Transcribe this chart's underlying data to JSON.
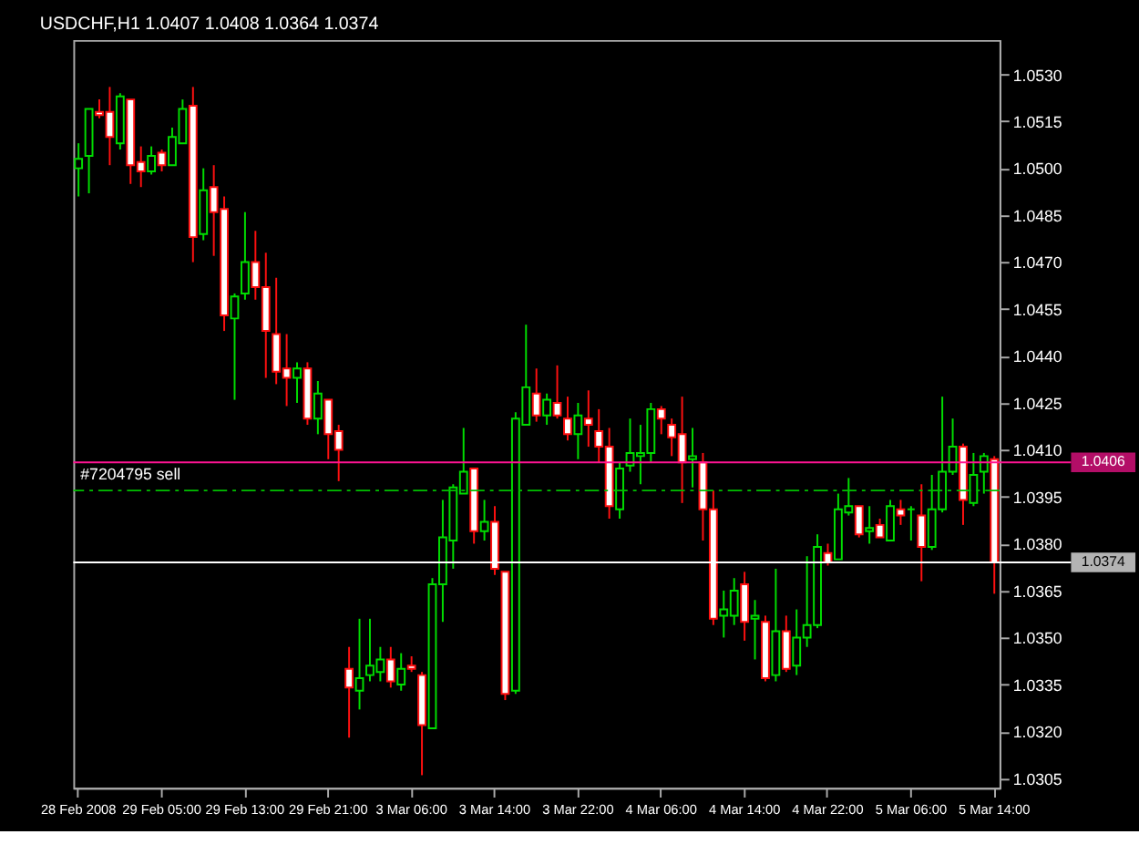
{
  "chart_data": {
    "type": "candlestick",
    "title": "USDCHF,H1  1.0407 1.0408 1.0364 1.0374",
    "categories": [
      "28 Feb 2008",
      null,
      null,
      null,
      null,
      null,
      null,
      null,
      "29 Feb 05:00",
      null,
      null,
      null,
      null,
      null,
      null,
      null,
      "29 Feb 13:00",
      null,
      null,
      null,
      null,
      null,
      null,
      null,
      "29 Feb 21:00",
      null,
      null,
      null,
      null,
      null,
      null,
      null,
      "3 Mar 06:00",
      null,
      null,
      null,
      null,
      null,
      null,
      null,
      "3 Mar 14:00",
      null,
      null,
      null,
      null,
      null,
      null,
      null,
      "3 Mar 22:00",
      null,
      null,
      null,
      null,
      null,
      null,
      null,
      "4 Mar 06:00",
      null,
      null,
      null,
      null,
      null,
      null,
      null,
      "4 Mar 14:00",
      null,
      null,
      null,
      null,
      null,
      null,
      null,
      "4 Mar 22:00",
      null,
      null,
      null,
      null,
      null,
      null,
      null,
      "5 Mar 06:00",
      null,
      null,
      null,
      null,
      null,
      null,
      null,
      "5 Mar 14:00"
    ],
    "ohlc": [
      [
        1.05,
        1.0508,
        1.0491,
        1.0503
      ],
      [
        1.0504,
        1.0519,
        1.0492,
        1.0519
      ],
      [
        1.0518,
        1.0522,
        1.0516,
        1.0517
      ],
      [
        1.0518,
        1.0526,
        1.0501,
        1.051
      ],
      [
        1.0508,
        1.0524,
        1.0506,
        1.0523
      ],
      [
        1.0522,
        1.0522,
        1.0495,
        1.0501
      ],
      [
        1.0502,
        1.0507,
        1.0494,
        1.0499
      ],
      [
        1.0499,
        1.0507,
        1.0498,
        1.0504
      ],
      [
        1.0505,
        1.0506,
        1.0499,
        1.0501
      ],
      [
        1.0501,
        1.0513,
        1.0501,
        1.051
      ],
      [
        1.0508,
        1.0522,
        1.0508,
        1.0519
      ],
      [
        1.052,
        1.0526,
        1.047,
        1.0478
      ],
      [
        1.0479,
        1.05,
        1.0477,
        1.0493
      ],
      [
        1.0494,
        1.0501,
        1.0472,
        1.0486
      ],
      [
        1.0487,
        1.0491,
        1.0448,
        1.0453
      ],
      [
        1.0452,
        1.046,
        1.0426,
        1.0459
      ],
      [
        1.046,
        1.0486,
        1.0458,
        1.047
      ],
      [
        1.047,
        1.048,
        1.0458,
        1.0462
      ],
      [
        1.0462,
        1.0473,
        1.0433,
        1.0448
      ],
      [
        1.0447,
        1.0465,
        1.0431,
        1.0435
      ],
      [
        1.0436,
        1.0447,
        1.0424,
        1.0433
      ],
      [
        1.0433,
        1.0438,
        1.0425,
        1.0436
      ],
      [
        1.0436,
        1.0438,
        1.0418,
        1.042
      ],
      [
        1.042,
        1.0432,
        1.0415,
        1.0428
      ],
      [
        1.0426,
        1.0426,
        1.0407,
        1.0415
      ],
      [
        1.0416,
        1.0418,
        1.04,
        1.041
      ],
      [
        1.034,
        1.0347,
        1.0318,
        1.0334
      ],
      [
        1.0333,
        1.0356,
        1.0327,
        1.0337
      ],
      [
        1.0338,
        1.0356,
        1.0336,
        1.0341
      ],
      [
        1.0339,
        1.0347,
        1.0336,
        1.0343
      ],
      [
        1.0343,
        1.0347,
        1.0334,
        1.0336
      ],
      [
        1.0335,
        1.0345,
        1.0333,
        1.034
      ],
      [
        1.0341,
        1.0344,
        1.0339,
        1.034
      ],
      [
        1.0338,
        1.0339,
        1.0306,
        1.0322
      ],
      [
        1.0321,
        1.0369,
        1.0321,
        1.0367
      ],
      [
        1.0367,
        1.0394,
        1.0355,
        1.0382
      ],
      [
        1.0381,
        1.0399,
        1.0372,
        1.0398
      ],
      [
        1.0396,
        1.0417,
        1.0396,
        1.0403
      ],
      [
        1.0404,
        1.0404,
        1.038,
        1.0384
      ],
      [
        1.0384,
        1.0394,
        1.0381,
        1.0387
      ],
      [
        1.0387,
        1.0392,
        1.037,
        1.0372
      ],
      [
        1.0371,
        1.0371,
        1.033,
        1.0332
      ],
      [
        1.0333,
        1.0422,
        1.0332,
        1.042
      ],
      [
        1.0418,
        1.045,
        1.0418,
        1.043
      ],
      [
        1.0428,
        1.0436,
        1.0419,
        1.0421
      ],
      [
        1.0421,
        1.0428,
        1.0418,
        1.0426
      ],
      [
        1.0425,
        1.0437,
        1.042,
        1.0421
      ],
      [
        1.042,
        1.0427,
        1.0413,
        1.0415
      ],
      [
        1.0415,
        1.0425,
        1.0407,
        1.0421
      ],
      [
        1.042,
        1.0429,
        1.0411,
        1.0418
      ],
      [
        1.0416,
        1.0423,
        1.0406,
        1.0411
      ],
      [
        1.0411,
        1.0417,
        1.0388,
        1.0392
      ],
      [
        1.0391,
        1.0406,
        1.0388,
        1.0404
      ],
      [
        1.0405,
        1.042,
        1.0403,
        1.0409
      ],
      [
        1.0408,
        1.0418,
        1.0399,
        1.0409
      ],
      [
        1.0409,
        1.0425,
        1.0406,
        1.0423
      ],
      [
        1.0423,
        1.0424,
        1.0415,
        1.042
      ],
      [
        1.0418,
        1.042,
        1.0408,
        1.0414
      ],
      [
        1.0415,
        1.0427,
        1.0393,
        1.0406
      ],
      [
        1.0407,
        1.0417,
        1.0398,
        1.0408
      ],
      [
        1.0406,
        1.0409,
        1.0381,
        1.0391
      ],
      [
        1.0391,
        1.0397,
        1.0354,
        1.0356
      ],
      [
        1.0357,
        1.0365,
        1.035,
        1.0359
      ],
      [
        1.0357,
        1.0369,
        1.0354,
        1.0365
      ],
      [
        1.0367,
        1.0371,
        1.0349,
        1.0355
      ],
      [
        1.0356,
        1.0362,
        1.0343,
        1.0357
      ],
      [
        1.0355,
        1.0357,
        1.0336,
        1.0337
      ],
      [
        1.0338,
        1.0372,
        1.0336,
        1.0352
      ],
      [
        1.0352,
        1.0357,
        1.0339,
        1.034
      ],
      [
        1.0341,
        1.0359,
        1.0338,
        1.035
      ],
      [
        1.035,
        1.0376,
        1.0347,
        1.0354
      ],
      [
        1.0354,
        1.0383,
        1.0353,
        1.0379
      ],
      [
        1.0377,
        1.038,
        1.0373,
        1.0374
      ],
      [
        1.0375,
        1.0396,
        1.0375,
        1.0391
      ],
      [
        1.039,
        1.0401,
        1.0389,
        1.0392
      ],
      [
        1.0392,
        1.0392,
        1.0382,
        1.0383
      ],
      [
        1.0384,
        1.0392,
        1.038,
        1.0385
      ],
      [
        1.0386,
        1.0388,
        1.0382,
        1.0382
      ],
      [
        1.0381,
        1.0394,
        1.0381,
        1.0392
      ],
      [
        1.0391,
        1.0394,
        1.0386,
        1.0389
      ],
      [
        1.0391,
        1.0392,
        1.0381,
        1.0391
      ],
      [
        1.0389,
        1.0399,
        1.0368,
        1.0379
      ],
      [
        1.0379,
        1.0402,
        1.0378,
        1.0391
      ],
      [
        1.0391,
        1.0427,
        1.039,
        1.0403
      ],
      [
        1.0403,
        1.042,
        1.0402,
        1.0411
      ],
      [
        1.0411,
        1.0412,
        1.0386,
        1.0394
      ],
      [
        1.0393,
        1.0409,
        1.0392,
        1.0402
      ],
      [
        1.0403,
        1.0409,
        1.0396,
        1.0408
      ],
      [
        1.0407,
        1.0408,
        1.0364,
        1.0374
      ]
    ],
    "colors": [
      "#00dd00",
      "#00dd00",
      "#ff1010",
      "#ff1010",
      "#00dd00",
      "#ff1010",
      "#ff1010",
      "#00dd00",
      "#ff1010",
      "#00dd00",
      "#00dd00",
      "#ff1010",
      "#00dd00",
      "#ff1010",
      "#ff1010",
      "#00dd00",
      "#00dd00",
      "#ff1010",
      "#ff1010",
      "#ff1010",
      "#ff1010",
      "#00dd00",
      "#ff1010",
      "#00dd00",
      "#ff1010",
      "#ff1010",
      "#ff1010",
      "#00dd00",
      "#00dd00",
      "#00dd00",
      "#ff1010",
      "#00dd00",
      "#ff1010",
      "#ff1010",
      "#00dd00",
      "#00dd00",
      "#00dd00",
      "#00dd00",
      "#ff1010",
      "#00dd00",
      "#ff1010",
      "#ff1010",
      "#00dd00",
      "#00dd00",
      "#ff1010",
      "#00dd00",
      "#ff1010",
      "#ff1010",
      "#00dd00",
      "#ff1010",
      "#ff1010",
      "#ff1010",
      "#00dd00",
      "#00dd00",
      "#00dd00",
      "#00dd00",
      "#ff1010",
      "#ff1010",
      "#ff1010",
      "#00dd00",
      "#ff1010",
      "#ff1010",
      "#00dd00",
      "#00dd00",
      "#ff1010",
      "#00dd00",
      "#ff1010",
      "#00dd00",
      "#ff1010",
      "#00dd00",
      "#00dd00",
      "#00dd00",
      "#ff1010",
      "#00dd00",
      "#00dd00",
      "#ff1010",
      "#00dd00",
      "#ff1010",
      "#00dd00",
      "#ff1010",
      "#00dd00",
      "#ff1010",
      "#00dd00",
      "#00dd00",
      "#00dd00",
      "#ff1010",
      "#00dd00",
      "#00dd00",
      "#ff1010"
    ],
    "ylim": [
      1.0302,
      1.0541
    ],
    "yticks": [
      1.0305,
      {
        "value": 1.032,
        "label": "1.0320"
      },
      1.0335,
      {
        "value": 1.035,
        "label": "1.0350"
      },
      1.0365,
      {
        "value": 1.038,
        "label": "1.0380"
      },
      1.0395,
      {
        "value": 1.041,
        "label": "1.0410"
      },
      1.0425,
      {
        "value": 1.044,
        "label": "1.0440"
      },
      1.0455,
      {
        "value": 1.047,
        "label": "1.0470"
      },
      1.0485,
      {
        "value": 1.05,
        "label": "1.0500"
      },
      1.0515,
      {
        "value": 1.053,
        "label": "1.0530"
      }
    ],
    "ref_lines": [
      {
        "axis": "y",
        "value": 1.0406,
        "label": "1.0406",
        "color": "#ff1493",
        "line_style": "solid"
      },
      {
        "axis": "y",
        "value": 1.0397,
        "label": "#7204795 sell",
        "color": "#00c000",
        "line_style": "dashed"
      },
      {
        "axis": "y",
        "value": 1.0374,
        "label": "1.0374",
        "color": "#ffffff",
        "line_style": "solid"
      }
    ],
    "grid": false
  }
}
